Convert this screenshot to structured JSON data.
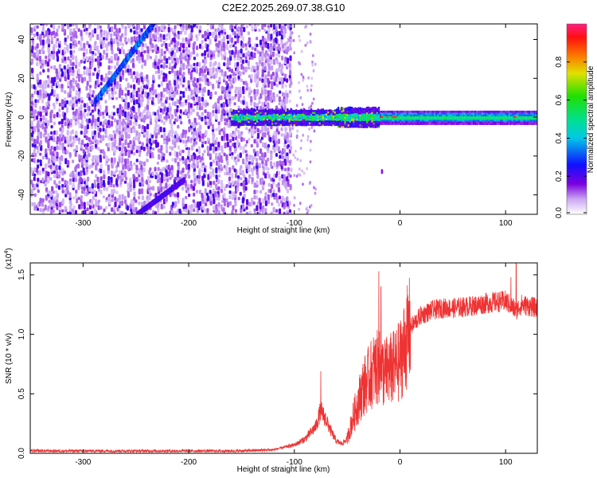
{
  "title": "C2E2.2025.269.07.38.G10",
  "chart_data": [
    {
      "type": "heatmap",
      "xlabel": "Height of straight line (km)",
      "ylabel": "Frequency (Hz)",
      "xlim": [
        -350,
        130
      ],
      "ylim": [
        -50,
        48
      ],
      "x_ticks": [
        -300,
        -200,
        -100,
        0,
        100
      ],
      "y_ticks": [
        -40,
        -20,
        0,
        20,
        40
      ],
      "colorbar": {
        "label": "Normalized spectral amplitude",
        "range": [
          0,
          1
        ],
        "ticks": [
          0.0,
          0.2,
          0.4,
          0.6,
          0.8
        ],
        "tick_labels": [
          "0.0",
          "0.2",
          "0.4",
          "0.6",
          "0.8"
        ]
      },
      "features": {
        "noise_region_x": [
          -350,
          -105
        ],
        "carrier_frequency": 0,
        "carrier_x_range": [
          -160,
          130
        ],
        "strong_carrier_x_range": [
          -20,
          130
        ],
        "diagonal_streak_x": [
          -290,
          -235
        ],
        "diagonal_streak_y": [
          8,
          48
        ]
      }
    },
    {
      "type": "line",
      "xlabel": "Height of straight line (km)",
      "ylabel": "SNR (10 * v/v)",
      "y_multiplier": "(x10",
      "y_multiplier_exp": "4",
      "y_multiplier_close": ")",
      "xlim": [
        -350,
        130
      ],
      "ylim": [
        0,
        1.6
      ],
      "x_ticks": [
        -300,
        -200,
        -100,
        0,
        100
      ],
      "y_ticks": [
        0.0,
        0.5,
        1.0,
        1.5
      ],
      "y_tick_labels": [
        "0.0",
        "0.5",
        "1.0",
        "1.5"
      ],
      "color": "#ee3333",
      "series": [
        {
          "x": [
            -350,
            -300,
            -250,
            -200,
            -150,
            -120,
            -100,
            -90,
            -80,
            -75,
            -70,
            -65,
            -60,
            -55,
            -50,
            -45,
            -40,
            -35,
            -30,
            -25,
            -20,
            -15,
            -10,
            -5,
            0,
            5,
            10,
            20,
            30,
            40,
            50,
            60,
            70,
            80,
            90,
            100,
            105,
            110,
            115,
            120,
            125,
            130
          ],
          "values": [
            0.02,
            0.02,
            0.02,
            0.02,
            0.02,
            0.03,
            0.07,
            0.12,
            0.22,
            0.36,
            0.28,
            0.18,
            0.1,
            0.08,
            0.12,
            0.28,
            0.42,
            0.55,
            0.62,
            0.7,
            0.72,
            0.68,
            0.7,
            0.72,
            0.78,
            0.92,
            1.06,
            1.16,
            1.2,
            1.22,
            1.22,
            1.23,
            1.24,
            1.26,
            1.27,
            1.28,
            1.24,
            1.2,
            1.25,
            1.24,
            1.23,
            1.22
          ],
          "peaks": [
            [
              -75,
              0.69
            ],
            [
              -20,
              1.53
            ],
            [
              -18,
              1.4
            ],
            [
              110,
              1.6
            ],
            [
              105,
              1.48
            ]
          ]
        }
      ]
    }
  ]
}
